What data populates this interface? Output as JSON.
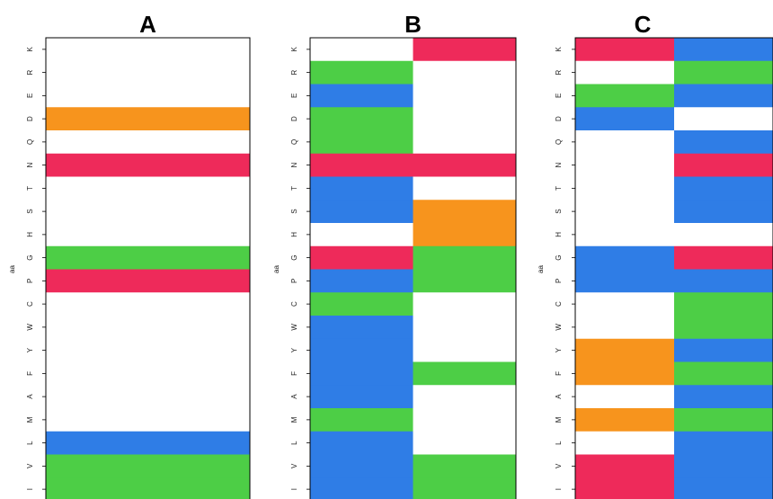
{
  "chart_data": {
    "type": "heatmap",
    "ylabel": "aa",
    "y_categories": [
      "K",
      "R",
      "E",
      "D",
      "Q",
      "N",
      "T",
      "S",
      "H",
      "G",
      "P",
      "C",
      "W",
      "Y",
      "F",
      "A",
      "M",
      "L",
      "V",
      "I"
    ],
    "color_key": {
      "orange": "#f7941d",
      "red": "#ee2a5a",
      "green": "#4dce46",
      "blue": "#2f7de6",
      "white": "#ffffff"
    },
    "panels": [
      {
        "title": "A",
        "columns": [
          [
            "white",
            "white",
            "white",
            "orange",
            "white",
            "red",
            "white",
            "white",
            "white",
            "green",
            "red",
            "white",
            "white",
            "white",
            "white",
            "white",
            "white",
            "blue",
            "green",
            "green"
          ]
        ]
      },
      {
        "title": "B",
        "columns": [
          [
            "white",
            "green",
            "blue",
            "green",
            "green",
            "red",
            "blue",
            "blue",
            "white",
            "red",
            "blue",
            "green",
            "blue",
            "blue",
            "blue",
            "blue",
            "green",
            "blue",
            "blue",
            "blue"
          ],
          [
            "red",
            "white",
            "white",
            "white",
            "white",
            "red",
            "white",
            "orange",
            "orange",
            "green",
            "green",
            "white",
            "white",
            "white",
            "green",
            "white",
            "white",
            "white",
            "green",
            "green"
          ]
        ]
      },
      {
        "title": "C",
        "columns": [
          [
            "red",
            "white",
            "green",
            "blue",
            "white",
            "white",
            "white",
            "white",
            "white",
            "blue",
            "blue",
            "white",
            "white",
            "orange",
            "orange",
            "white",
            "orange",
            "white",
            "red",
            "red"
          ],
          [
            "blue",
            "green",
            "blue",
            "white",
            "blue",
            "red",
            "blue",
            "blue",
            "white",
            "red",
            "blue",
            "green",
            "green",
            "blue",
            "green",
            "blue",
            "green",
            "blue",
            "blue",
            "blue"
          ]
        ]
      }
    ]
  }
}
